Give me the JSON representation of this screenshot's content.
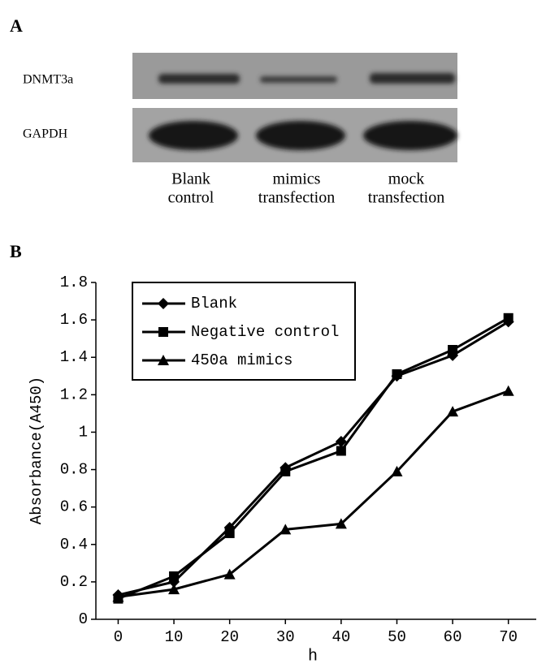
{
  "panel_a": {
    "label": "A",
    "rows": [
      "DNMT3a",
      "GAPDH"
    ],
    "lanes": [
      [
        "Blank",
        "control"
      ],
      [
        "mimics",
        "transfection"
      ],
      [
        "mock",
        "transfection"
      ]
    ]
  },
  "panel_b": {
    "label": "B"
  },
  "chart_data": {
    "type": "line",
    "xlabel": "h",
    "ylabel": "Absorbance(A450)",
    "x": [
      0,
      10,
      20,
      30,
      40,
      50,
      60,
      70
    ],
    "series": [
      {
        "name": "Blank",
        "color": "#000000",
        "marker": "diamond",
        "values": [
          0.13,
          0.2,
          0.49,
          0.81,
          0.95,
          1.3,
          1.41,
          1.59
        ]
      },
      {
        "name": "Negative control",
        "color": "#000000",
        "marker": "square",
        "values": [
          0.11,
          0.23,
          0.46,
          0.79,
          0.9,
          1.31,
          1.44,
          1.61
        ]
      },
      {
        "name": "450a mimics",
        "color": "#000000",
        "marker": "triangle",
        "values": [
          0.12,
          0.16,
          0.24,
          0.48,
          0.51,
          0.79,
          1.11,
          1.22
        ]
      }
    ],
    "xlim": [
      -4,
      75
    ],
    "xticks": [
      0,
      10,
      20,
      30,
      40,
      50,
      60,
      70
    ],
    "ylim": [
      0,
      1.8
    ],
    "yticks": [
      0,
      0.2,
      0.4,
      0.6,
      0.8,
      1,
      1.2,
      1.4,
      1.6,
      1.8
    ],
    "legend": "upper left"
  }
}
